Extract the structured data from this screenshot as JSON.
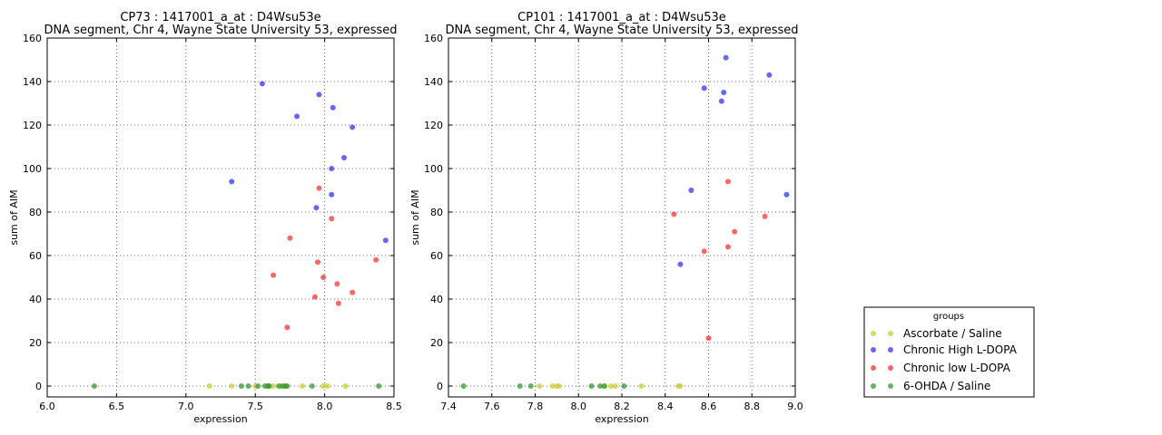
{
  "legend": {
    "title": "groups",
    "placement": "right, outside plots",
    "entries": [
      {
        "label": "Ascorbate / Saline",
        "color": "#cccc33"
      },
      {
        "label": "Chronic High L-DOPA",
        "color": "#3333ff"
      },
      {
        "label": "Chronic low L-DOPA",
        "color": "#ff3333"
      },
      {
        "label": "6-OHDA / Saline",
        "color": "#339933"
      }
    ]
  },
  "chart_data": [
    {
      "type": "scatter",
      "title": "CP73 : 1417001_a_at : D4Wsu53e",
      "subtitle": "DNA segment, Chr 4, Wayne State University 53, expressed",
      "xlabel": "expression",
      "ylabel": "sum of AIM",
      "xlim": [
        6.0,
        8.5
      ],
      "ylim": [
        -5,
        160
      ],
      "xticks": [
        "6.0",
        "6.5",
        "7.0",
        "7.5",
        "8.0",
        "8.5"
      ],
      "yticks": [
        "0",
        "20",
        "40",
        "60",
        "80",
        "100",
        "120",
        "140",
        "160"
      ],
      "grid": true,
      "series": [
        {
          "name": "Ascorbate / Saline",
          "color": "#cccc33",
          "points": [
            [
              7.17,
              0
            ],
            [
              7.33,
              0
            ],
            [
              7.5,
              0
            ],
            [
              7.6,
              0
            ],
            [
              7.63,
              0
            ],
            [
              7.68,
              0
            ],
            [
              7.7,
              0
            ],
            [
              7.84,
              0
            ],
            [
              7.99,
              0
            ],
            [
              8.02,
              0
            ],
            [
              8.15,
              0
            ]
          ]
        },
        {
          "name": "Chronic High L-DOPA",
          "color": "#3333ff",
          "points": [
            [
              7.55,
              139
            ],
            [
              7.96,
              134
            ],
            [
              8.06,
              128
            ],
            [
              7.8,
              124
            ],
            [
              8.2,
              119
            ],
            [
              8.14,
              105
            ],
            [
              8.05,
              100
            ],
            [
              7.33,
              94
            ],
            [
              8.05,
              88
            ],
            [
              7.94,
              82
            ],
            [
              8.44,
              67
            ]
          ]
        },
        {
          "name": "Chronic low L-DOPA",
          "color": "#ff3333",
          "points": [
            [
              7.96,
              91
            ],
            [
              8.05,
              77
            ],
            [
              7.75,
              68
            ],
            [
              8.37,
              58
            ],
            [
              7.95,
              57
            ],
            [
              7.63,
              51
            ],
            [
              7.99,
              50
            ],
            [
              8.09,
              47
            ],
            [
              8.2,
              43
            ],
            [
              7.93,
              41
            ],
            [
              8.1,
              38
            ],
            [
              7.73,
              27
            ]
          ]
        },
        {
          "name": "6-OHDA / Saline",
          "color": "#339933",
          "points": [
            [
              6.34,
              0
            ],
            [
              7.4,
              0
            ],
            [
              7.45,
              0
            ],
            [
              7.52,
              0
            ],
            [
              7.57,
              0
            ],
            [
              7.59,
              0
            ],
            [
              7.6,
              0
            ],
            [
              7.67,
              0
            ],
            [
              7.7,
              0
            ],
            [
              7.72,
              0
            ],
            [
              7.73,
              0
            ],
            [
              7.91,
              0
            ],
            [
              8.39,
              0
            ]
          ]
        }
      ]
    },
    {
      "type": "scatter",
      "title": "CP101 : 1417001_a_at : D4Wsu53e",
      "subtitle": "DNA segment, Chr 4, Wayne State University 53, expressed",
      "xlabel": "expression",
      "ylabel": "sum of AIM",
      "xlim": [
        7.4,
        9.0
      ],
      "ylim": [
        -5,
        160
      ],
      "xticks": [
        "7.4",
        "7.6",
        "7.8",
        "8.0",
        "8.2",
        "8.4",
        "8.6",
        "8.8",
        "9.0"
      ],
      "yticks": [
        "0",
        "20",
        "40",
        "60",
        "80",
        "100",
        "120",
        "140",
        "160"
      ],
      "grid": true,
      "series": [
        {
          "name": "Ascorbate / Saline",
          "color": "#cccc33",
          "points": [
            [
              7.82,
              0
            ],
            [
              7.88,
              0
            ],
            [
              7.9,
              0
            ],
            [
              7.91,
              0
            ],
            [
              8.12,
              0
            ],
            [
              8.15,
              0
            ],
            [
              8.17,
              0
            ],
            [
              8.29,
              0
            ],
            [
              8.46,
              0
            ],
            [
              8.47,
              0
            ]
          ]
        },
        {
          "name": "Chronic High L-DOPA",
          "color": "#3333ff",
          "points": [
            [
              8.68,
              151
            ],
            [
              8.88,
              143
            ],
            [
              8.58,
              137
            ],
            [
              8.67,
              135
            ],
            [
              8.66,
              131
            ],
            [
              8.52,
              90
            ],
            [
              8.96,
              88
            ],
            [
              8.47,
              56
            ]
          ]
        },
        {
          "name": "Chronic low L-DOPA",
          "color": "#ff3333",
          "points": [
            [
              8.69,
              94
            ],
            [
              8.44,
              79
            ],
            [
              8.86,
              78
            ],
            [
              8.72,
              71
            ],
            [
              8.69,
              64
            ],
            [
              8.58,
              62
            ],
            [
              8.6,
              22
            ]
          ]
        },
        {
          "name": "6-OHDA / Saline",
          "color": "#339933",
          "points": [
            [
              7.47,
              0
            ],
            [
              7.73,
              0
            ],
            [
              7.78,
              0
            ],
            [
              8.06,
              0
            ],
            [
              8.1,
              0
            ],
            [
              8.12,
              0
            ],
            [
              8.21,
              0
            ]
          ]
        }
      ]
    }
  ]
}
